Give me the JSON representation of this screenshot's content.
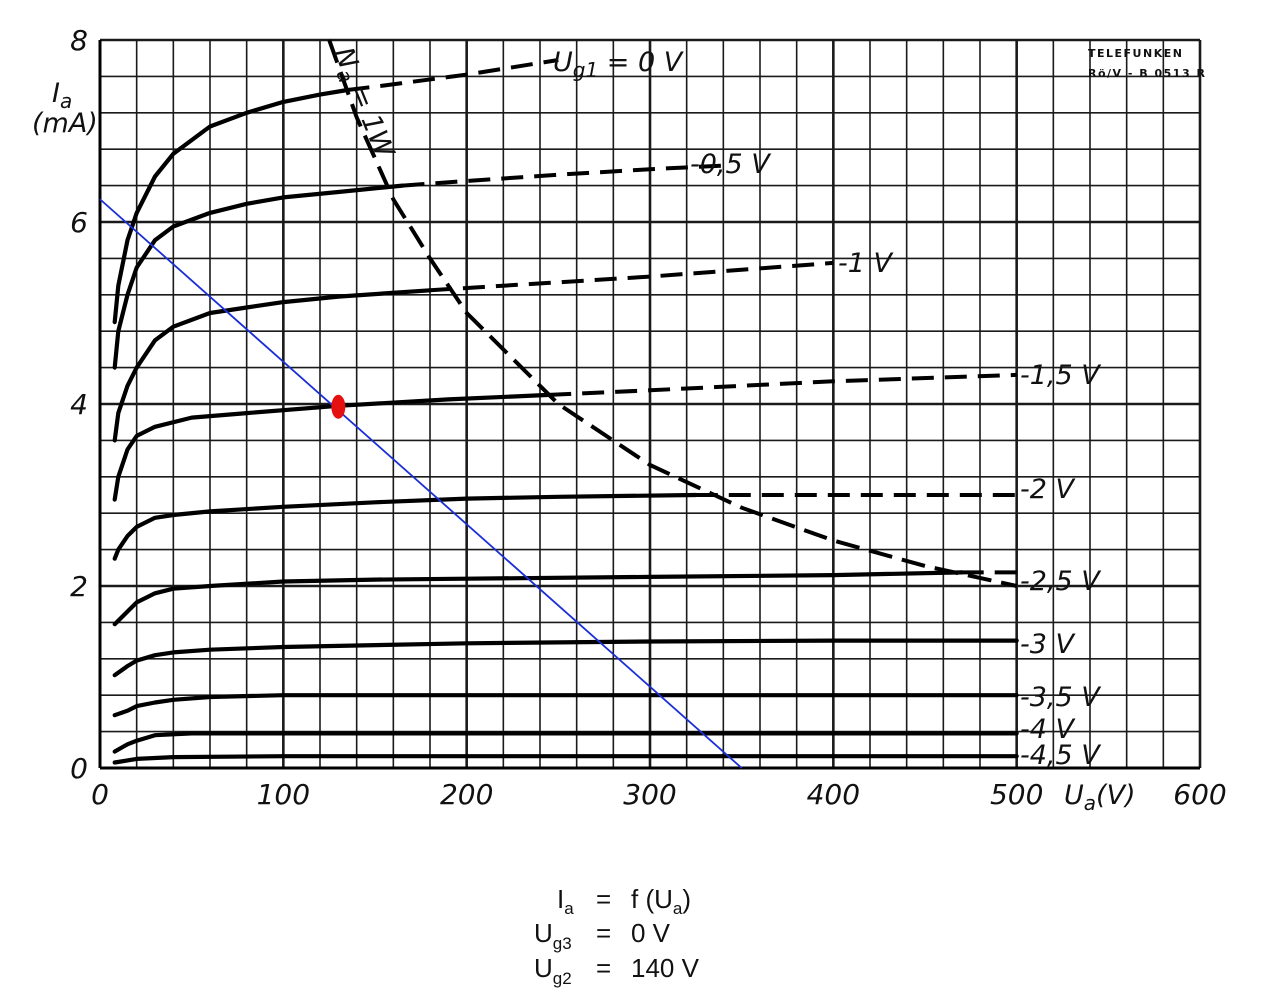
{
  "chart_data": {
    "type": "line",
    "maker": {
      "line1": "TELEFUNKEN",
      "line2": "Rö/V - B 0513 R"
    },
    "x_axis": {
      "title": "U",
      "title_sub": "a",
      "unit": "(V)",
      "range": [
        0,
        600
      ],
      "ticks": [
        0,
        100,
        200,
        300,
        400,
        500,
        600
      ],
      "tick_labels": [
        "0",
        "100",
        "200",
        "300",
        "400",
        "500",
        "600"
      ]
    },
    "y_axis": {
      "title": "I",
      "title_sub": "a",
      "unit": "(mA)",
      "range": [
        0,
        8
      ],
      "ticks": [
        0,
        2,
        4,
        6,
        8
      ],
      "tick_labels": [
        "0",
        "2",
        "4",
        "6",
        "8"
      ]
    },
    "grid": true,
    "series": [
      {
        "name": "Ug1 = 0 V",
        "label": "U",
        "label_sub": "g1",
        "label_rest": " = 0 V",
        "points": [
          [
            8,
            4.9
          ],
          [
            10,
            5.3
          ],
          [
            15,
            5.8
          ],
          [
            20,
            6.1
          ],
          [
            30,
            6.5
          ],
          [
            40,
            6.75
          ],
          [
            60,
            7.05
          ],
          [
            80,
            7.2
          ],
          [
            100,
            7.32
          ],
          [
            120,
            7.4
          ],
          [
            135,
            7.45
          ]
        ],
        "dashed": [
          [
            155,
            7.5
          ],
          [
            200,
            7.62
          ],
          [
            250,
            7.78
          ]
        ]
      },
      {
        "name": "-0,5 V",
        "label": "-0,5 V",
        "points": [
          [
            8,
            4.4
          ],
          [
            10,
            4.8
          ],
          [
            15,
            5.2
          ],
          [
            20,
            5.5
          ],
          [
            30,
            5.8
          ],
          [
            40,
            5.95
          ],
          [
            60,
            6.1
          ],
          [
            80,
            6.2
          ],
          [
            100,
            6.27
          ],
          [
            130,
            6.33
          ],
          [
            165,
            6.4
          ]
        ],
        "dashed": [
          [
            200,
            6.45
          ],
          [
            250,
            6.52
          ],
          [
            300,
            6.58
          ],
          [
            340,
            6.62
          ]
        ]
      },
      {
        "name": "-1 V",
        "label": "-1 V",
        "points": [
          [
            8,
            3.6
          ],
          [
            10,
            3.9
          ],
          [
            15,
            4.2
          ],
          [
            20,
            4.4
          ],
          [
            30,
            4.7
          ],
          [
            40,
            4.85
          ],
          [
            60,
            5.0
          ],
          [
            80,
            5.06
          ],
          [
            100,
            5.12
          ],
          [
            130,
            5.18
          ],
          [
            180,
            5.25
          ]
        ],
        "dashed": [
          [
            220,
            5.3
          ],
          [
            300,
            5.4
          ],
          [
            400,
            5.55
          ]
        ]
      },
      {
        "name": "-1,5 V",
        "label": "-1,5 V",
        "points": [
          [
            8,
            2.95
          ],
          [
            10,
            3.2
          ],
          [
            15,
            3.5
          ],
          [
            20,
            3.65
          ],
          [
            30,
            3.75
          ],
          [
            50,
            3.85
          ],
          [
            80,
            3.9
          ],
          [
            130,
            3.98
          ],
          [
            190,
            4.05
          ],
          [
            245,
            4.1
          ]
        ],
        "dashed": [
          [
            300,
            4.15
          ],
          [
            400,
            4.25
          ],
          [
            500,
            4.32
          ]
        ]
      },
      {
        "name": "-2 V",
        "label": "-2 V",
        "points": [
          [
            8,
            2.3
          ],
          [
            10,
            2.4
          ],
          [
            15,
            2.55
          ],
          [
            20,
            2.65
          ],
          [
            30,
            2.75
          ],
          [
            40,
            2.78
          ],
          [
            60,
            2.82
          ],
          [
            100,
            2.87
          ],
          [
            150,
            2.92
          ],
          [
            200,
            2.96
          ],
          [
            250,
            2.98
          ],
          [
            325,
            3.0
          ]
        ],
        "dashed": [
          [
            380,
            3.0
          ],
          [
            450,
            3.0
          ],
          [
            500,
            3.0
          ]
        ]
      },
      {
        "name": "-2,5 V",
        "label": "-2,5 V",
        "points": [
          [
            8,
            1.58
          ],
          [
            15,
            1.72
          ],
          [
            20,
            1.82
          ],
          [
            30,
            1.92
          ],
          [
            40,
            1.97
          ],
          [
            60,
            2.0
          ],
          [
            100,
            2.05
          ],
          [
            150,
            2.07
          ],
          [
            200,
            2.08
          ],
          [
            300,
            2.1
          ],
          [
            400,
            2.12
          ],
          [
            470,
            2.15
          ]
        ],
        "dashed": [
          [
            500,
            2.15
          ]
        ]
      },
      {
        "name": "-3 V",
        "label": "-3 V",
        "points": [
          [
            8,
            1.02
          ],
          [
            15,
            1.12
          ],
          [
            20,
            1.18
          ],
          [
            30,
            1.24
          ],
          [
            40,
            1.27
          ],
          [
            60,
            1.3
          ],
          [
            100,
            1.33
          ],
          [
            200,
            1.37
          ],
          [
            300,
            1.39
          ],
          [
            400,
            1.4
          ],
          [
            500,
            1.4
          ]
        ],
        "dashed": []
      },
      {
        "name": "-3,5 V",
        "label": "-3,5 V",
        "points": [
          [
            8,
            0.58
          ],
          [
            15,
            0.63
          ],
          [
            20,
            0.68
          ],
          [
            30,
            0.72
          ],
          [
            40,
            0.75
          ],
          [
            60,
            0.78
          ],
          [
            100,
            0.8
          ],
          [
            200,
            0.8
          ],
          [
            300,
            0.8
          ],
          [
            400,
            0.8
          ],
          [
            500,
            0.8
          ]
        ],
        "dashed": []
      },
      {
        "name": "-4 V",
        "label": "-4 V",
        "points": [
          [
            8,
            0.18
          ],
          [
            15,
            0.26
          ],
          [
            20,
            0.3
          ],
          [
            30,
            0.36
          ],
          [
            50,
            0.38
          ],
          [
            100,
            0.38
          ],
          [
            200,
            0.38
          ],
          [
            300,
            0.38
          ],
          [
            400,
            0.38
          ],
          [
            500,
            0.38
          ]
        ],
        "dashed": []
      },
      {
        "name": "-4,5 V",
        "label": "-4,5 V",
        "points": [
          [
            8,
            0.06
          ],
          [
            20,
            0.1
          ],
          [
            40,
            0.12
          ],
          [
            100,
            0.13
          ],
          [
            300,
            0.13
          ],
          [
            500,
            0.13
          ]
        ],
        "dashed": []
      }
    ],
    "power_limit": {
      "label": "N",
      "label_sub": "a",
      "label_rest": " = 1W",
      "points": [
        [
          125,
          8.0
        ],
        [
          140,
          7.15
        ],
        [
          160,
          6.25
        ],
        [
          180,
          5.6
        ],
        [
          200,
          5.0
        ],
        [
          250,
          4.0
        ],
        [
          300,
          3.33
        ],
        [
          350,
          2.86
        ],
        [
          400,
          2.5
        ],
        [
          450,
          2.22
        ],
        [
          500,
          2.0
        ]
      ]
    },
    "load_line": {
      "color": "#1a2fd6",
      "points": [
        [
          0,
          6.25
        ],
        [
          350,
          0
        ]
      ]
    },
    "operating_point": {
      "color": "#e51010",
      "x": 130,
      "y": 3.97
    }
  },
  "formula": {
    "line1": {
      "lhs": "I",
      "lhs_sub": "a",
      "eq": "=",
      "rhs": "f (U",
      "rhs_sub": "a",
      "rhs_end": ")"
    },
    "line2": {
      "lhs": "U",
      "lhs_sub": "g3",
      "eq": "=",
      "rhs": "0 V"
    },
    "line3": {
      "lhs": "U",
      "lhs_sub": "g2",
      "eq": "=",
      "rhs": "140 V"
    }
  }
}
